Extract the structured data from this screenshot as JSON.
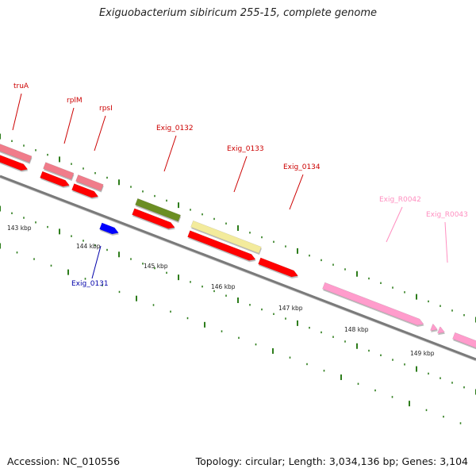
{
  "title": "Exiguobacterium sibiricum 255-15, complete genome",
  "footer": {
    "accession": "Accession: NC_010556",
    "topology": "Topology: circular; Length: 3,034,136 bp; Genes: 3,104"
  },
  "colors": {
    "backbone": "#7a7a7a",
    "tick": "#2e7d1c",
    "cds": "#ff0000",
    "rna": "#f07c8a",
    "ncrna": "#ff9ccc",
    "gene_olive": "#6b8e23",
    "gene_khaki": "#f3eb9c",
    "gene_blue": "#0000ff",
    "label_red": "#cc0000",
    "label_blue": "#0000aa",
    "label_pink": "#ff8fc0"
  },
  "gene_labels": [
    {
      "name": "truA",
      "color": "label_red"
    },
    {
      "name": "rplM",
      "color": "label_red"
    },
    {
      "name": "rpsI",
      "color": "label_red"
    },
    {
      "name": "Exig_0132",
      "color": "label_red"
    },
    {
      "name": "Exig_0133",
      "color": "label_red"
    },
    {
      "name": "Exig_0134",
      "color": "label_red"
    },
    {
      "name": "Exig_R0042",
      "color": "label_pink"
    },
    {
      "name": "Exig_R0043",
      "color": "label_pink"
    },
    {
      "name": "Exig_0131",
      "color": "label_blue"
    }
  ],
  "kbp_labels": [
    "143 kbp",
    "144 kbp",
    "145 kbp",
    "146 kbp",
    "147 kbp",
    "148 kbp",
    "149 kbp"
  ]
}
